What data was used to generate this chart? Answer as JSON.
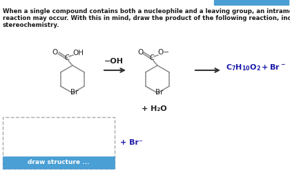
{
  "background_color": "#ffffff",
  "text_color": "#1a1a1a",
  "blue_bar_color": "#4a9fd4",
  "button_color": "#4a9fd4",
  "button_text": "draw structure ...",
  "ring_color": "#888888",
  "bond_color": "#333333",
  "arrow_color": "#333333",
  "product_color": "#1a1aaa",
  "plus_h2o": "+ H₂O",
  "plus_br": "+ Br⁻",
  "title_lines": [
    "When a single compound contains both a nucleophile and a leaving group, an intramolecular",
    "reaction may occur. With this in mind, draw the product of the following reaction, including",
    "stereochemistry."
  ]
}
